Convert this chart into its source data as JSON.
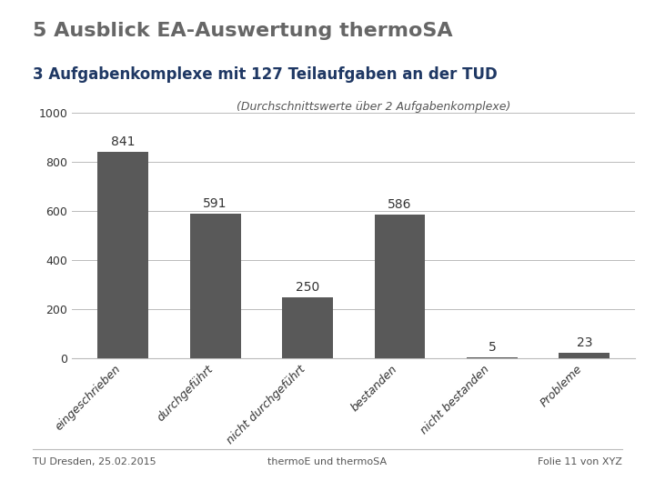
{
  "title": "5 Ausblick EA-Auswertung thermoSA",
  "subtitle": "3 Aufgabenkomplexe mit 127 Teilaufgaben an der TUD",
  "chart_note": "(Durchschnittswerte über 2 Aufgabenkomplexe)",
  "categories": [
    "eingeschrieben",
    "durchgeführt",
    "nicht durchgeführt",
    "bestanden",
    "nicht bestanden",
    "Probleme"
  ],
  "values": [
    841,
    591,
    250,
    586,
    5,
    23
  ],
  "bar_color": "#595959",
  "background_color": "#ffffff",
  "ylim": [
    0,
    1000
  ],
  "yticks": [
    0,
    200,
    400,
    600,
    800,
    1000
  ],
  "footer_left": "TU Dresden, 25.02.2015",
  "footer_center": "thermoE und thermoSA",
  "footer_right": "Folie 11 von XYZ",
  "title_color": "#666666",
  "subtitle_color": "#1f3864",
  "note_color": "#555555",
  "footer_color": "#555555",
  "grid_color": "#bbbbbb",
  "title_fontsize": 16,
  "subtitle_fontsize": 12,
  "note_fontsize": 9,
  "bar_label_fontsize": 10,
  "tick_fontsize": 9,
  "footer_fontsize": 8
}
